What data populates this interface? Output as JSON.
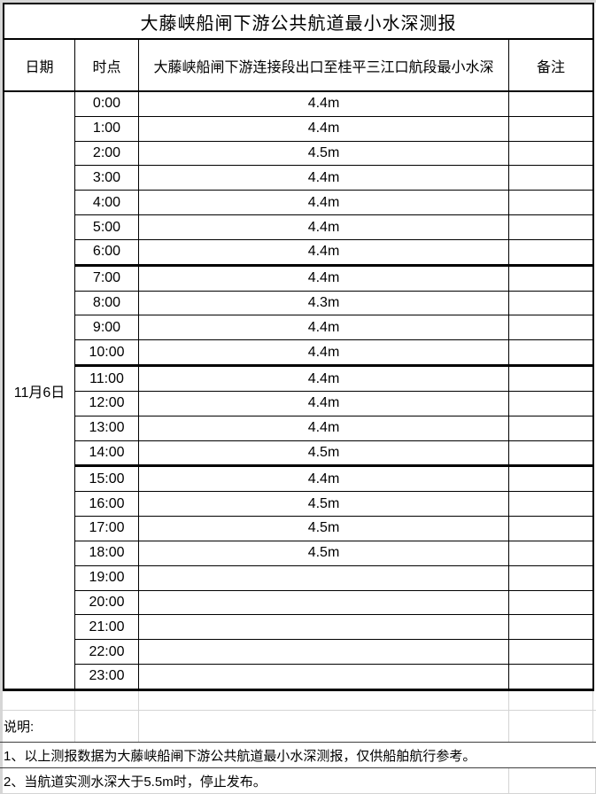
{
  "title": "大藤峡船闸下游公共航道最小水深测报",
  "table": {
    "headers": {
      "date": "日期",
      "time": "时点",
      "depth": "大藤峡船闸下游连接段出口至桂平三江口航段最小水深",
      "remark": "备注"
    },
    "date": "11月6日",
    "rows": [
      {
        "time": "0:00",
        "depth": "4.4m",
        "remark": ""
      },
      {
        "time": "1:00",
        "depth": "4.4m",
        "remark": ""
      },
      {
        "time": "2:00",
        "depth": "4.5m",
        "remark": ""
      },
      {
        "time": "3:00",
        "depth": "4.4m",
        "remark": ""
      },
      {
        "time": "4:00",
        "depth": "4.4m",
        "remark": ""
      },
      {
        "time": "5:00",
        "depth": "4.4m",
        "remark": ""
      },
      {
        "time": "6:00",
        "depth": "4.4m",
        "remark": ""
      },
      {
        "time": "7:00",
        "depth": "4.4m",
        "remark": ""
      },
      {
        "time": "8:00",
        "depth": "4.3m",
        "remark": ""
      },
      {
        "time": "9:00",
        "depth": "4.4m",
        "remark": ""
      },
      {
        "time": "10:00",
        "depth": "4.4m",
        "remark": ""
      },
      {
        "time": "11:00",
        "depth": "4.4m",
        "remark": ""
      },
      {
        "time": "12:00",
        "depth": "4.4m",
        "remark": ""
      },
      {
        "time": "13:00",
        "depth": "4.4m",
        "remark": ""
      },
      {
        "time": "14:00",
        "depth": "4.5m",
        "remark": ""
      },
      {
        "time": "15:00",
        "depth": "4.4m",
        "remark": ""
      },
      {
        "time": "16:00",
        "depth": "4.5m",
        "remark": ""
      },
      {
        "time": "17:00",
        "depth": "4.5m",
        "remark": ""
      },
      {
        "time": "18:00",
        "depth": "4.5m",
        "remark": ""
      },
      {
        "time": "19:00",
        "depth": "",
        "remark": ""
      },
      {
        "time": "20:00",
        "depth": "",
        "remark": ""
      },
      {
        "time": "21:00",
        "depth": "",
        "remark": ""
      },
      {
        "time": "22:00",
        "depth": "",
        "remark": ""
      },
      {
        "time": "23:00",
        "depth": "",
        "remark": ""
      }
    ]
  },
  "notes": {
    "label": "说明:",
    "items": [
      "1、以上测报数据为大藤峡船闸下游公共航道最小水深测报，仅供船舶航行参考。",
      "2、当航道实测水深大于5.5m时，停止发布。"
    ]
  },
  "colors": {
    "border_dark": "#000000",
    "grid_light": "#d4d4d4",
    "note_border": "#3f3f3f"
  }
}
